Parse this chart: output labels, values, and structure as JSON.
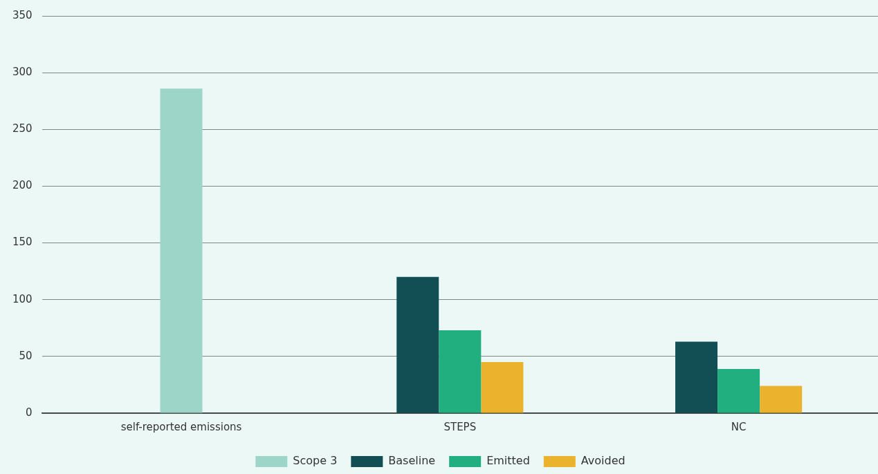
{
  "chart_data": {
    "type": "bar",
    "categories": [
      "self-reported emissions",
      "STEPS",
      "NC"
    ],
    "series": [
      {
        "name": "Scope 3",
        "color": "#9dd6c8",
        "values": [
          286,
          null,
          null
        ]
      },
      {
        "name": "Baseline",
        "color": "#124f55",
        "values": [
          null,
          120,
          63
        ]
      },
      {
        "name": "Emitted",
        "color": "#21af7f",
        "values": [
          null,
          73,
          39
        ]
      },
      {
        "name": "Avoided",
        "color": "#ebb32d",
        "values": [
          null,
          45,
          24
        ]
      }
    ],
    "ylim": [
      0,
      350
    ],
    "yticks": [
      0,
      50,
      100,
      150,
      200,
      250,
      300,
      350
    ],
    "grid": "y",
    "legend": "bottom"
  }
}
